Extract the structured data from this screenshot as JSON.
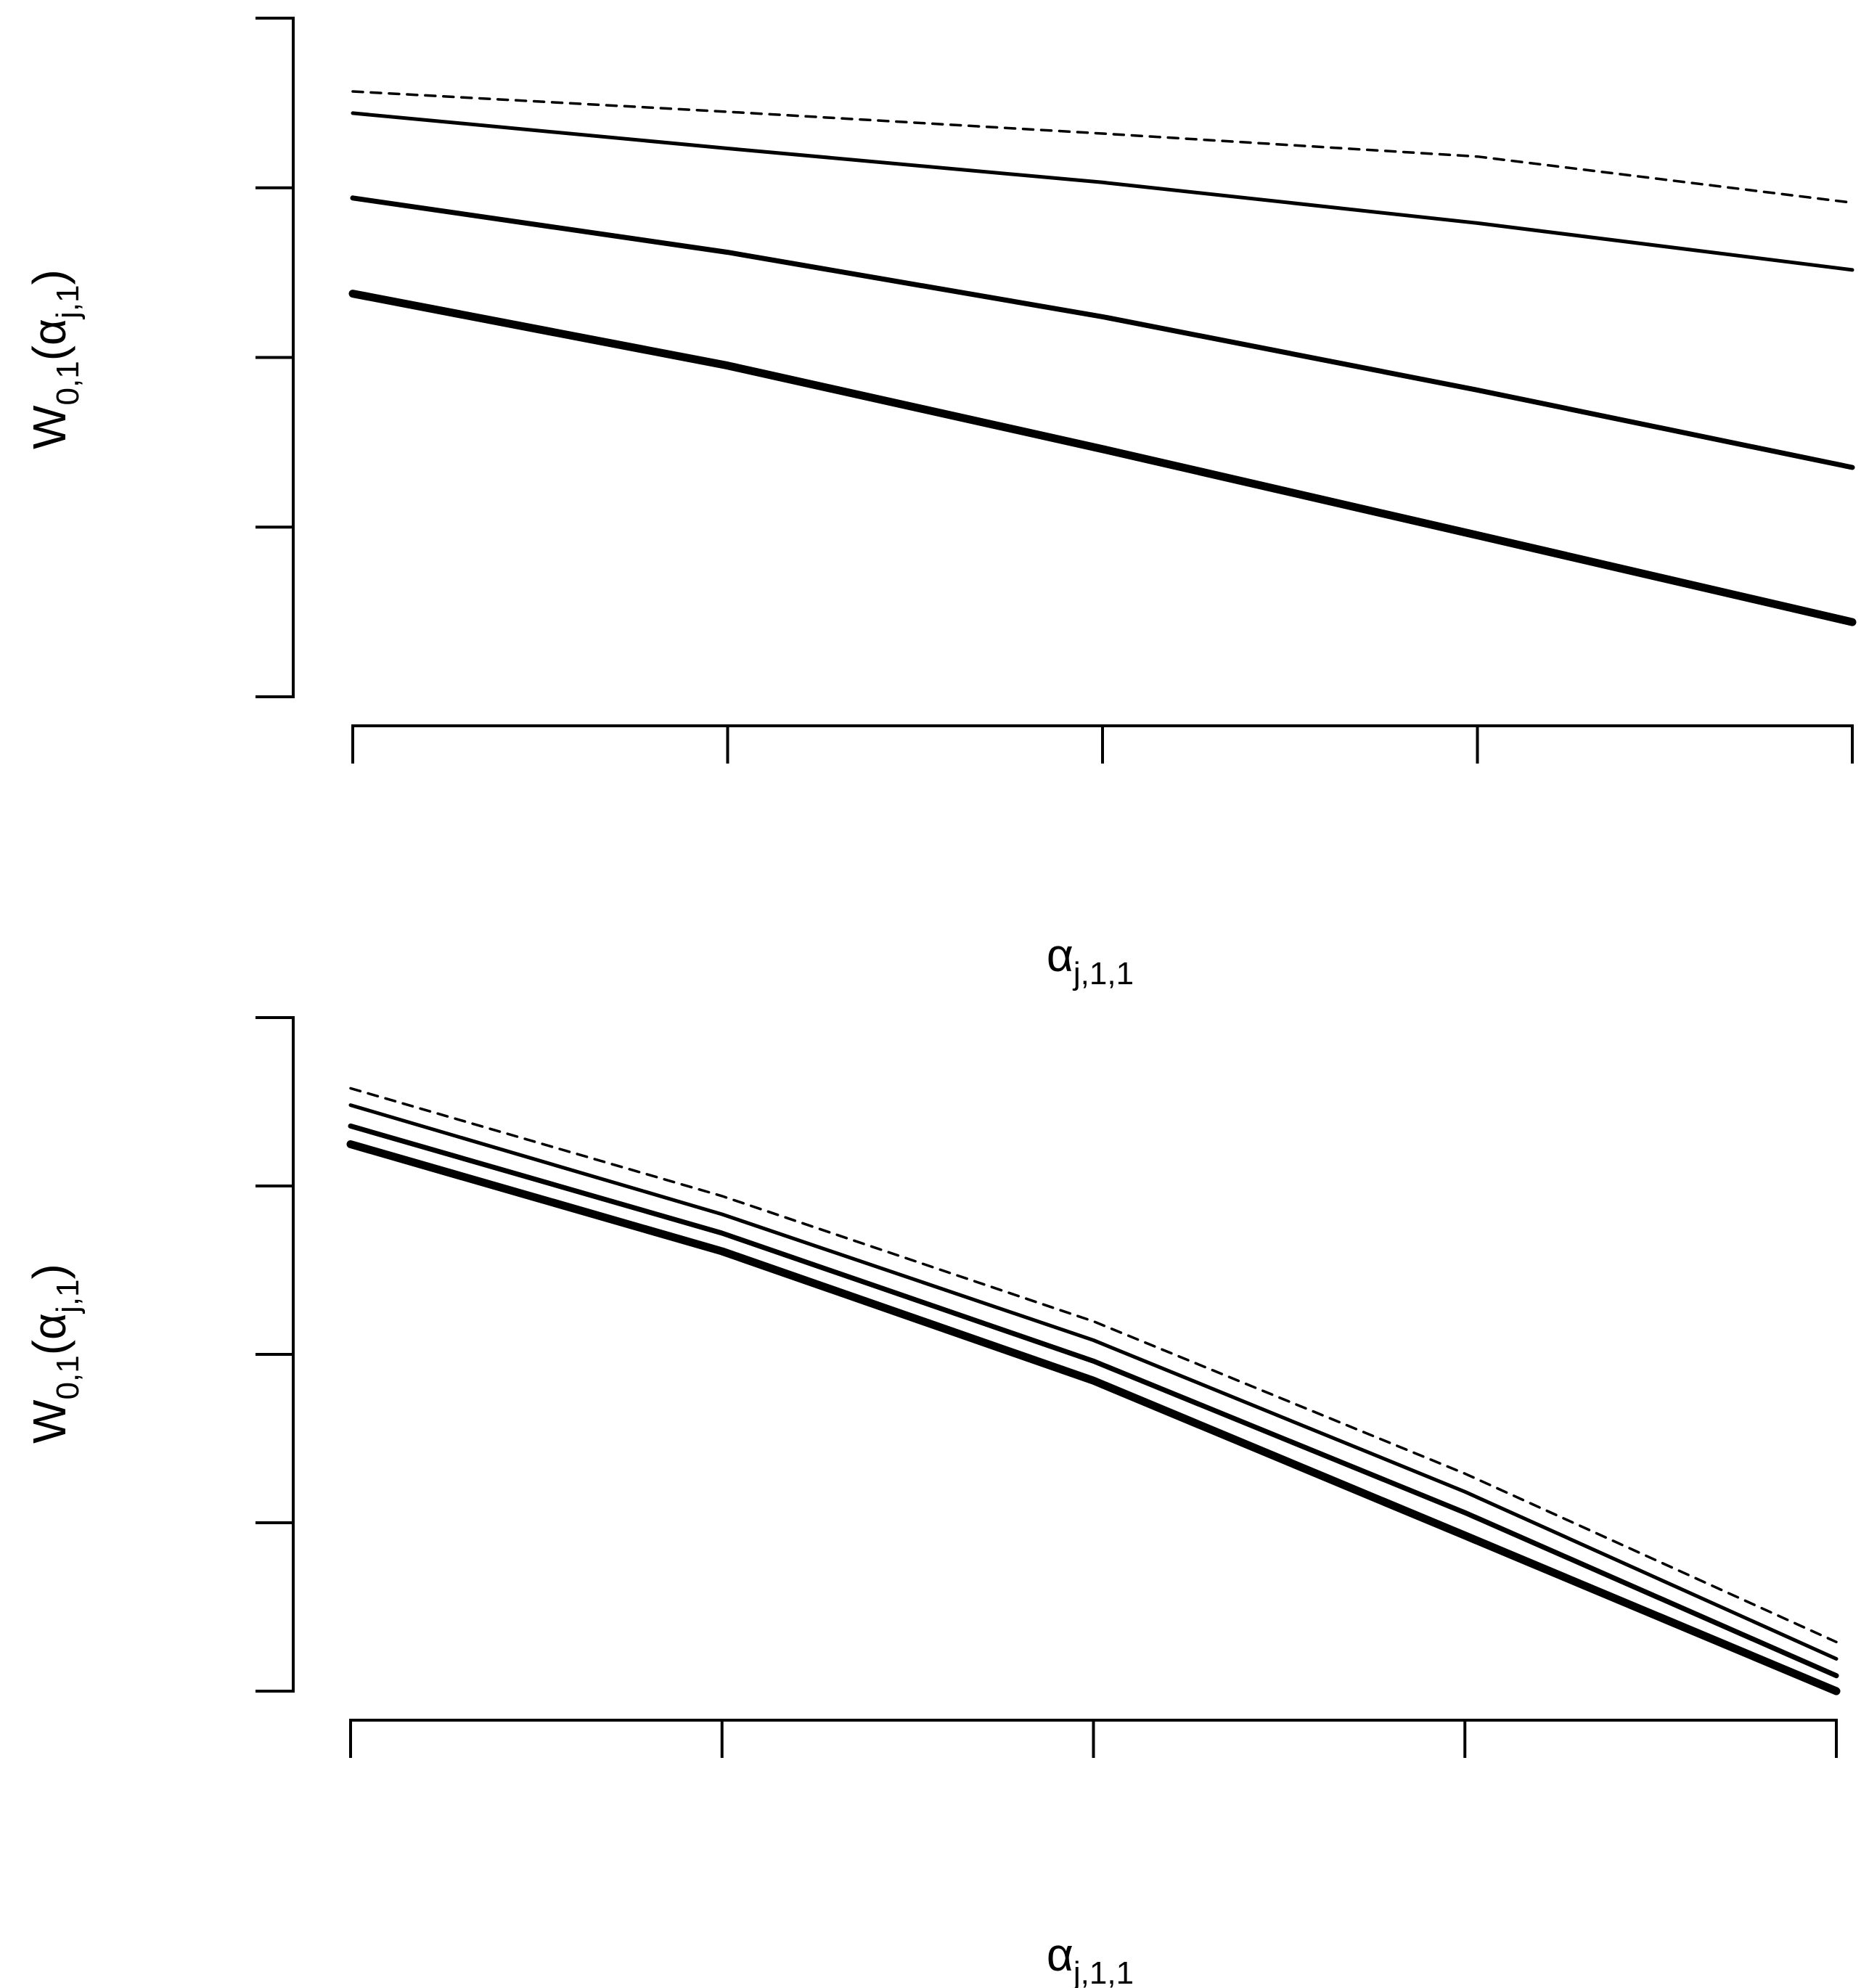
{
  "chart_data": [
    {
      "type": "line",
      "xlabel": "α",
      "xlabel_sub": "j,1,1",
      "ylabel": "W",
      "ylabel_sub": "0,1",
      "ylabel_paren_open": "(",
      "ylabel_arg": "α",
      "ylabel_arg_sub": "j,1",
      "ylabel_paren_close": ")",
      "tick_labels_shown": false,
      "xlim": [
        0,
        1
      ],
      "ylim": [
        0,
        1
      ],
      "x_ticks": [
        0,
        0.25,
        0.5,
        0.75,
        1
      ],
      "y_ticks": [
        0,
        0.25,
        0.5,
        0.75,
        1
      ],
      "grid": false,
      "series": [
        {
          "style": "dashed",
          "weight": 1,
          "x": [
            0,
            0.25,
            0.5,
            0.75,
            1
          ],
          "y": [
            0.892,
            0.862,
            0.83,
            0.796,
            0.728
          ]
        },
        {
          "style": "solid",
          "weight": 2,
          "x": [
            0,
            0.25,
            0.5,
            0.75,
            1
          ],
          "y": [
            0.86,
            0.808,
            0.758,
            0.698,
            0.629
          ]
        },
        {
          "style": "solid",
          "weight": 3,
          "x": [
            0,
            0.25,
            0.5,
            0.75,
            1
          ],
          "y": [
            0.735,
            0.655,
            0.56,
            0.452,
            0.338
          ]
        },
        {
          "style": "solid",
          "weight": 5,
          "x": [
            0,
            0.25,
            0.5,
            0.75,
            1
          ],
          "y": [
            0.594,
            0.488,
            0.365,
            0.238,
            0.11
          ]
        }
      ]
    },
    {
      "type": "line",
      "xlabel": "α",
      "xlabel_sub": "j,1,1",
      "ylabel": "W",
      "ylabel_sub": "0,1",
      "ylabel_paren_open": "(",
      "ylabel_arg": "α",
      "ylabel_arg_sub": "j,1",
      "ylabel_paren_close": ")",
      "tick_labels_shown": false,
      "xlim": [
        0,
        1
      ],
      "ylim": [
        0,
        1
      ],
      "x_ticks": [
        0,
        0.25,
        0.5,
        0.75,
        1
      ],
      "y_ticks": [
        0,
        0.25,
        0.5,
        0.75,
        1
      ],
      "grid": false,
      "series": [
        {
          "style": "dashed",
          "weight": 1,
          "x": [
            0,
            0.25,
            0.5,
            0.75,
            1
          ],
          "y": [
            0.895,
            0.735,
            0.549,
            0.323,
            0.073
          ]
        },
        {
          "style": "solid",
          "weight": 2,
          "x": [
            0,
            0.25,
            0.5,
            0.75,
            1
          ],
          "y": [
            0.87,
            0.708,
            0.521,
            0.296,
            0.048
          ]
        },
        {
          "style": "solid",
          "weight": 3,
          "x": [
            0,
            0.25,
            0.5,
            0.75,
            1
          ],
          "y": [
            0.839,
            0.68,
            0.49,
            0.265,
            0.023
          ]
        },
        {
          "style": "solid",
          "weight": 5,
          "x": [
            0,
            0.25,
            0.5,
            0.75,
            1
          ],
          "y": [
            0.812,
            0.653,
            0.461,
            0.231,
            0.0
          ]
        }
      ]
    }
  ]
}
